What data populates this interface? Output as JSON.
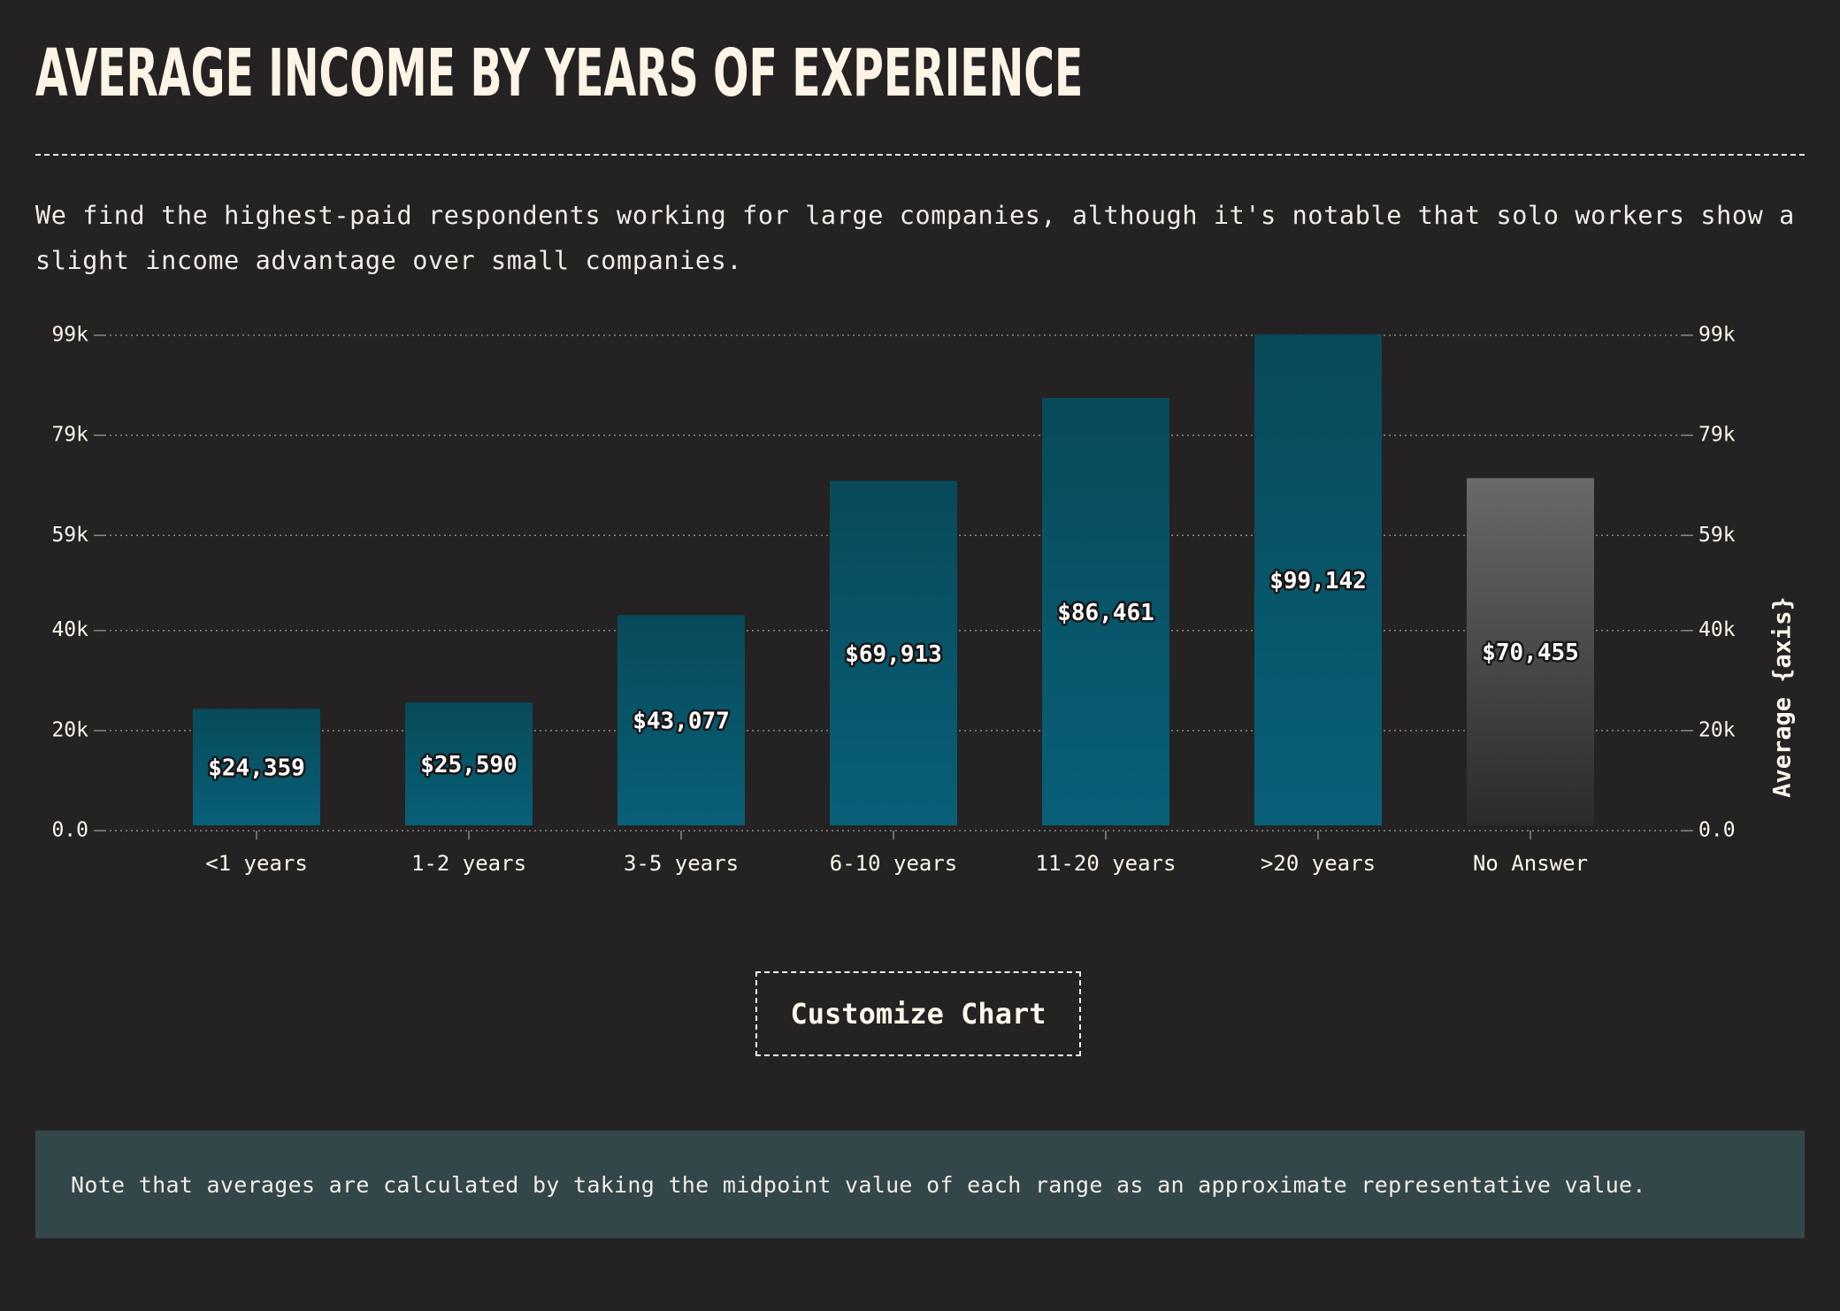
{
  "header": {
    "title": "AVERAGE INCOME BY YEARS OF EXPERIENCE",
    "description": "We find the highest-paid respondents working for large companies, although it's notable that solo workers show a slight income advantage over small companies."
  },
  "chart_data": {
    "type": "bar",
    "categories": [
      "<1 years",
      "1-2 years",
      "3-5 years",
      "6-10 years",
      "11-20 years",
      ">20 years",
      "No Answer"
    ],
    "values": [
      24359,
      25590,
      43077,
      69913,
      86461,
      99142,
      70455
    ],
    "value_labels": [
      "$24,359",
      "$25,590",
      "$43,077",
      "$69,913",
      "$86,461",
      "$99,142",
      "$70,455"
    ],
    "y_ticks": [
      0,
      20000,
      40000,
      59000,
      79000,
      99000
    ],
    "y_tick_labels": [
      "0.0",
      "20k",
      "40k",
      "59k",
      "79k",
      "99k"
    ],
    "ylim": [
      0,
      99000
    ],
    "ylabel": "Average {axis}",
    "grid": true,
    "colors": {
      "bar_top": "#084a5a",
      "bar_bottom": "#086078",
      "no_answer_top": "#6a6868",
      "no_answer_bottom": "#2c2a2b",
      "grid": "#8a8682",
      "text": "#fdf6ea"
    }
  },
  "actions": {
    "customize_label": "Customize Chart"
  },
  "note": {
    "text": "Note that averages are calculated by taking the midpoint value of each range as an approximate representative value."
  }
}
